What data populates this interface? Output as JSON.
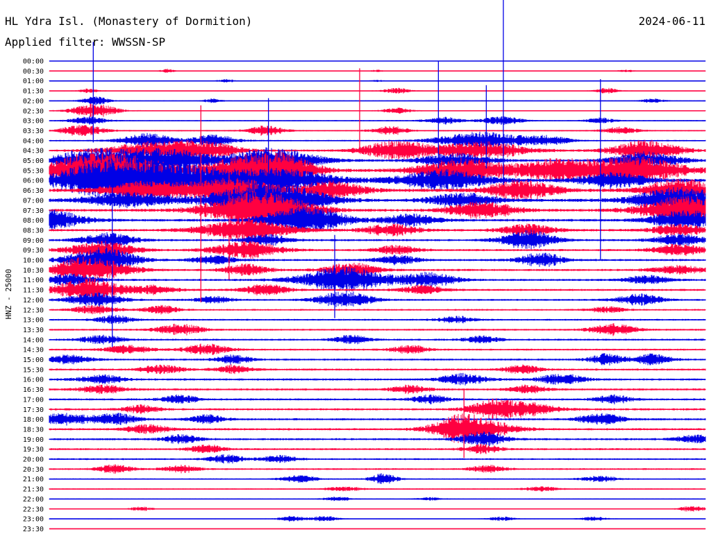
{
  "header": {
    "station": "HL Ydra Isl. (Monastery of Dormition)",
    "date": "2024-06-11",
    "filter": "Applied filter: WWSSN-SP"
  },
  "chart_data": {
    "type": "line",
    "title": "HL Ydra Isl. (Monastery of Dormition)",
    "date": "2024-06-11",
    "filter": "WWSSN-SP",
    "ylabel": "HNZ - 25000",
    "xlabel": "",
    "grid": false,
    "legend": "none",
    "colors": {
      "even_row": "#0000e6",
      "odd_row": "#ff0040"
    },
    "rows": [
      {
        "label": "00:00",
        "noise": 0.4,
        "bursts": []
      },
      {
        "label": "00:30",
        "noise": 0.5,
        "bursts": [
          [
            0.18,
            3,
            0.3
          ],
          [
            0.5,
            1.5,
            0.3
          ],
          [
            0.88,
            1.5,
            0.4
          ]
        ]
      },
      {
        "label": "01:00",
        "noise": 0.5,
        "bursts": [
          [
            0.27,
            2.5,
            0.4
          ],
          [
            0.5,
            1.5,
            0.3
          ]
        ]
      },
      {
        "label": "01:30",
        "noise": 0.6,
        "bursts": [
          [
            0.06,
            3,
            0.4
          ],
          [
            0.53,
            4,
            0.6
          ],
          [
            0.85,
            4,
            0.5
          ]
        ]
      },
      {
        "label": "02:00",
        "noise": 0.7,
        "bursts": [
          [
            0.07,
            6,
            0.6
          ],
          [
            0.25,
            3,
            0.4
          ],
          [
            0.92,
            3,
            0.5
          ]
        ]
      },
      {
        "label": "02:30",
        "noise": 0.8,
        "bursts": [
          [
            0.07,
            10,
            1.0
          ],
          [
            0.53,
            4,
            0.6
          ]
        ]
      },
      {
        "label": "03:00",
        "noise": 0.9,
        "bursts": [
          [
            0.06,
            6,
            0.8
          ],
          [
            0.6,
            5,
            0.8
          ],
          [
            0.69,
            6,
            0.9
          ],
          [
            0.84,
            4,
            0.6
          ]
        ]
      },
      {
        "label": "03:30",
        "noise": 1.0,
        "bursts": [
          [
            0.05,
            8,
            1.0
          ],
          [
            0.33,
            7,
            0.8
          ],
          [
            0.52,
            6,
            0.8
          ],
          [
            0.87,
            5,
            0.8
          ]
        ]
      },
      {
        "label": "04:00",
        "noise": 1.1,
        "bursts": [
          [
            0.15,
            10,
            1.2
          ],
          [
            0.25,
            8,
            1.0
          ],
          [
            0.66,
            12,
            2.0
          ],
          [
            0.76,
            6,
            1.0
          ]
        ]
      },
      {
        "label": "04:30",
        "noise": 1.6,
        "bursts": [
          [
            0.16,
            12,
            2.0
          ],
          [
            0.24,
            10,
            1.5
          ],
          [
            0.53,
            14,
            1.5
          ],
          [
            0.66,
            12,
            2.0
          ],
          [
            0.91,
            14,
            1.5
          ]
        ]
      },
      {
        "label": "05:00",
        "noise": 1.8,
        "bursts": [
          [
            0.05,
            12,
            1.5
          ],
          [
            0.13,
            14,
            2.0
          ],
          [
            0.2,
            10,
            1.5
          ],
          [
            0.34,
            18,
            2.0
          ],
          [
            0.62,
            10,
            1.5
          ],
          [
            0.91,
            12,
            1.5
          ]
        ]
      },
      {
        "label": "05:30",
        "noise": 2.2,
        "bursts": [
          [
            0.06,
            20,
            2.0
          ],
          [
            0.13,
            14,
            2.0
          ],
          [
            0.3,
            18,
            2.0
          ],
          [
            0.36,
            16,
            1.5
          ],
          [
            0.63,
            16,
            2.0
          ],
          [
            0.78,
            16,
            2.0
          ],
          [
            0.9,
            18,
            2.0
          ]
        ]
      },
      {
        "label": "06:00",
        "noise": 2.5,
        "bursts": [
          [
            0.07,
            18,
            2.0
          ],
          [
            0.14,
            14,
            2.5
          ],
          [
            0.2,
            16,
            2.5
          ],
          [
            0.35,
            15,
            2.5
          ],
          [
            0.6,
            14,
            2.0
          ],
          [
            0.86,
            10,
            1.5
          ]
        ]
      },
      {
        "label": "06:30",
        "noise": 2.4,
        "bursts": [
          [
            0.15,
            12,
            2.0
          ],
          [
            0.28,
            16,
            2.0
          ],
          [
            0.43,
            12,
            1.5
          ],
          [
            0.72,
            14,
            1.5
          ],
          [
            0.96,
            16,
            1.5
          ]
        ]
      },
      {
        "label": "07:00",
        "noise": 2.2,
        "bursts": [
          [
            0.12,
            10,
            2.0
          ],
          [
            0.3,
            14,
            2.0
          ],
          [
            0.36,
            18,
            2.0
          ],
          [
            0.63,
            10,
            1.5
          ],
          [
            0.96,
            18,
            2.0
          ]
        ]
      },
      {
        "label": "07:30",
        "noise": 2.0,
        "bursts": [
          [
            0.3,
            18,
            2.0
          ],
          [
            0.35,
            12,
            2.0
          ],
          [
            0.66,
            12,
            1.5
          ],
          [
            0.97,
            20,
            2.0
          ]
        ]
      },
      {
        "label": "08:00",
        "noise": 2.0,
        "bursts": [
          [
            0.0,
            14,
            1.5
          ],
          [
            0.36,
            10,
            1.5
          ],
          [
            0.41,
            14,
            1.5
          ],
          [
            0.55,
            8,
            1.2
          ],
          [
            0.97,
            14,
            1.5
          ]
        ]
      },
      {
        "label": "08:30",
        "noise": 1.8,
        "bursts": [
          [
            0.3,
            16,
            2.0
          ],
          [
            0.52,
            8,
            1.2
          ],
          [
            0.73,
            8,
            1.2
          ],
          [
            0.96,
            8,
            1.2
          ]
        ]
      },
      {
        "label": "09:00",
        "noise": 1.6,
        "bursts": [
          [
            0.09,
            10,
            1.2
          ],
          [
            0.33,
            8,
            1.0
          ],
          [
            0.73,
            14,
            1.2
          ],
          [
            0.96,
            8,
            1.2
          ]
        ]
      },
      {
        "label": "09:30",
        "noise": 1.6,
        "bursts": [
          [
            0.08,
            12,
            1.5
          ],
          [
            0.3,
            12,
            1.5
          ],
          [
            0.53,
            6,
            1.0
          ],
          [
            0.96,
            8,
            1.2
          ]
        ]
      },
      {
        "label": "10:00",
        "noise": 1.6,
        "bursts": [
          [
            0.08,
            18,
            1.5
          ],
          [
            0.25,
            6,
            1.0
          ],
          [
            0.53,
            6,
            1.0
          ],
          [
            0.75,
            10,
            1.0
          ]
        ]
      },
      {
        "label": "10:30",
        "noise": 1.6,
        "bursts": [
          [
            0.04,
            10,
            1.2
          ],
          [
            0.08,
            12,
            1.5
          ],
          [
            0.3,
            8,
            1.0
          ],
          [
            0.46,
            10,
            1.2
          ],
          [
            0.96,
            6,
            1.2
          ]
        ]
      },
      {
        "label": "11:00",
        "noise": 1.6,
        "bursts": [
          [
            0.03,
            8,
            1.2
          ],
          [
            0.45,
            18,
            2.0
          ],
          [
            0.58,
            10,
            1.2
          ],
          [
            0.91,
            6,
            1.0
          ]
        ]
      },
      {
        "label": "11:30",
        "noise": 1.5,
        "bursts": [
          [
            0.06,
            16,
            1.5
          ],
          [
            0.16,
            6,
            1.0
          ],
          [
            0.33,
            8,
            1.0
          ],
          [
            0.57,
            6,
            1.0
          ]
        ]
      },
      {
        "label": "12:00",
        "noise": 1.4,
        "bursts": [
          [
            0.07,
            10,
            1.2
          ],
          [
            0.25,
            5,
            0.8
          ],
          [
            0.45,
            12,
            1.2
          ],
          [
            0.9,
            8,
            1.0
          ]
        ]
      },
      {
        "label": "12:30",
        "noise": 1.3,
        "bursts": [
          [
            0.07,
            6,
            1.0
          ],
          [
            0.17,
            6,
            0.8
          ],
          [
            0.85,
            4,
            0.8
          ]
        ]
      },
      {
        "label": "13:00",
        "noise": 1.3,
        "bursts": [
          [
            0.1,
            6,
            0.8
          ],
          [
            0.62,
            5,
            0.8
          ]
        ]
      },
      {
        "label": "13:30",
        "noise": 1.4,
        "bursts": [
          [
            0.2,
            8,
            1.0
          ],
          [
            0.86,
            8,
            1.0
          ]
        ]
      },
      {
        "label": "14:00",
        "noise": 1.4,
        "bursts": [
          [
            0.08,
            6,
            1.0
          ],
          [
            0.46,
            6,
            0.8
          ],
          [
            0.66,
            5,
            0.8
          ]
        ]
      },
      {
        "label": "14:30",
        "noise": 1.4,
        "bursts": [
          [
            0.12,
            6,
            1.0
          ],
          [
            0.24,
            8,
            1.0
          ],
          [
            0.55,
            6,
            0.8
          ]
        ]
      },
      {
        "label": "15:00",
        "noise": 1.5,
        "bursts": [
          [
            0.03,
            6,
            1.0
          ],
          [
            0.28,
            6,
            0.8
          ],
          [
            0.85,
            8,
            0.8
          ],
          [
            0.92,
            8,
            0.8
          ]
        ]
      },
      {
        "label": "15:30",
        "noise": 1.5,
        "bursts": [
          [
            0.17,
            6,
            1.0
          ],
          [
            0.28,
            6,
            0.8
          ],
          [
            0.72,
            6,
            0.8
          ]
        ]
      },
      {
        "label": "16:00",
        "noise": 1.6,
        "bursts": [
          [
            0.08,
            6,
            1.0
          ],
          [
            0.63,
            8,
            1.0
          ],
          [
            0.78,
            8,
            1.0
          ]
        ]
      },
      {
        "label": "16:30",
        "noise": 1.6,
        "bursts": [
          [
            0.08,
            6,
            1.0
          ],
          [
            0.55,
            6,
            0.8
          ],
          [
            0.73,
            6,
            0.8
          ]
        ]
      },
      {
        "label": "17:00",
        "noise": 1.5,
        "bursts": [
          [
            0.2,
            6,
            0.8
          ],
          [
            0.58,
            6,
            0.8
          ],
          [
            0.86,
            6,
            0.8
          ]
        ]
      },
      {
        "label": "17:30",
        "noise": 1.6,
        "bursts": [
          [
            0.14,
            6,
            0.8
          ],
          [
            0.67,
            10,
            1.0
          ],
          [
            0.72,
            10,
            1.5
          ]
        ]
      },
      {
        "label": "18:00",
        "noise": 1.6,
        "bursts": [
          [
            0.02,
            8,
            1.2
          ],
          [
            0.1,
            8,
            1.0
          ],
          [
            0.24,
            6,
            0.8
          ],
          [
            0.84,
            8,
            1.0
          ]
        ]
      },
      {
        "label": "18:30",
        "noise": 1.6,
        "bursts": [
          [
            0.15,
            6,
            1.0
          ],
          [
            0.62,
            14,
            1.2
          ],
          [
            0.66,
            12,
            1.5
          ]
        ]
      },
      {
        "label": "19:00",
        "noise": 1.6,
        "bursts": [
          [
            0.2,
            6,
            0.8
          ],
          [
            0.66,
            10,
            1.0
          ],
          [
            0.99,
            6,
            1.0
          ]
        ]
      },
      {
        "label": "19:30",
        "noise": 1.5,
        "bursts": [
          [
            0.24,
            6,
            0.8
          ],
          [
            0.66,
            6,
            0.8
          ]
        ]
      },
      {
        "label": "20:00",
        "noise": 1.3,
        "bursts": [
          [
            0.27,
            6,
            0.8
          ],
          [
            0.35,
            5,
            0.8
          ]
        ]
      },
      {
        "label": "20:30",
        "noise": 1.3,
        "bursts": [
          [
            0.1,
            6,
            0.8
          ],
          [
            0.2,
            5,
            0.8
          ],
          [
            0.67,
            5,
            0.8
          ]
        ]
      },
      {
        "label": "21:00",
        "noise": 1.0,
        "bursts": [
          [
            0.38,
            5,
            0.8
          ],
          [
            0.51,
            8,
            0.6
          ],
          [
            0.84,
            4,
            0.8
          ]
        ]
      },
      {
        "label": "21:30",
        "noise": 0.9,
        "bursts": [
          [
            0.45,
            3,
            0.8
          ],
          [
            0.75,
            3,
            0.8
          ]
        ]
      },
      {
        "label": "22:00",
        "noise": 0.7,
        "bursts": [
          [
            0.44,
            3,
            0.6
          ],
          [
            0.58,
            2,
            0.6
          ]
        ]
      },
      {
        "label": "22:30",
        "noise": 0.6,
        "bursts": [
          [
            0.14,
            3,
            0.5
          ],
          [
            0.98,
            4,
            0.6
          ]
        ]
      },
      {
        "label": "23:00",
        "noise": 0.6,
        "bursts": [
          [
            0.37,
            4,
            0.6
          ],
          [
            0.42,
            4,
            0.6
          ],
          [
            0.69,
            3,
            0.6
          ],
          [
            0.83,
            3,
            0.6
          ]
        ]
      },
      {
        "label": "23:30",
        "noise": 0.4,
        "bursts": []
      }
    ],
    "spikes": [
      {
        "row": "05:30",
        "x": 0.231,
        "up": 94,
        "down": 190
      },
      {
        "row": "01:00",
        "x": 0.692,
        "up": 120,
        "down": 150
      },
      {
        "row": "17:30",
        "x": 0.632,
        "up": 30,
        "down": 70
      },
      {
        "row": "02:00",
        "x": 0.067,
        "up": 85,
        "down": 60
      },
      {
        "row": "03:30",
        "x": 0.473,
        "up": 90,
        "down": 30
      },
      {
        "row": "04:00",
        "x": 0.593,
        "up": 115,
        "down": 40
      },
      {
        "row": "04:00",
        "x": 0.666,
        "up": 80,
        "down": 40
      },
      {
        "row": "05:00",
        "x": 0.334,
        "up": 90,
        "down": 35
      },
      {
        "row": "03:00",
        "x": 0.84,
        "up": 60,
        "down": 200
      },
      {
        "row": "11:00",
        "x": 0.435,
        "up": 65,
        "down": 55
      },
      {
        "row": "07:30",
        "x": 0.274,
        "up": 60,
        "down": 100
      },
      {
        "row": "06:00",
        "x": 0.096,
        "up": 30,
        "down": 240
      }
    ]
  }
}
